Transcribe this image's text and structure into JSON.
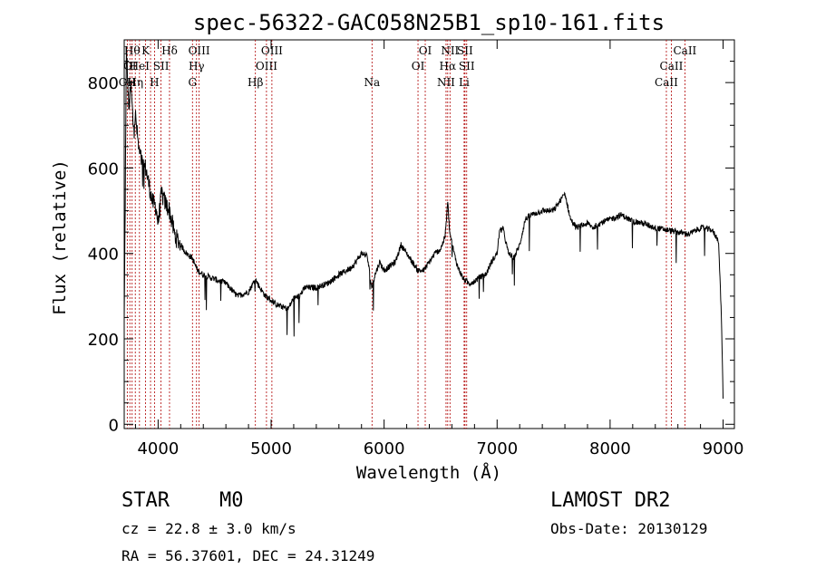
{
  "chart_data": {
    "type": "line",
    "title": "spec-56322-GAC058N25B1_sp10-161.fits",
    "xlabel": "Wavelength (Å)",
    "ylabel": "Flux (relative)",
    "xlim": [
      3700,
      9100
    ],
    "ylim": [
      -10,
      900
    ],
    "x_ticks": [
      4000,
      5000,
      6000,
      7000,
      8000,
      9000
    ],
    "y_ticks": [
      0,
      200,
      400,
      600,
      800
    ],
    "grid": false,
    "series": [
      {
        "x": [
          3700,
          3720,
          3740,
          3760,
          3780,
          3800,
          3830,
          3860,
          3890,
          3920,
          3950,
          3980,
          4000,
          4030,
          4060,
          4100,
          4150,
          4200,
          4250,
          4300,
          4350,
          4400,
          4500,
          4600,
          4700,
          4800,
          4860,
          4900,
          4950,
          5000,
          5050,
          5100,
          5150,
          5200,
          5250,
          5300,
          5400,
          5500,
          5600,
          5700,
          5750,
          5800,
          5850,
          5890,
          5920,
          5960,
          6000,
          6050,
          6100,
          6150,
          6200,
          6250,
          6300,
          6350,
          6400,
          6450,
          6500,
          6540,
          6563,
          6580,
          6620,
          6650,
          6700,
          6750,
          6800,
          6850,
          6900,
          6950,
          7000,
          7020,
          7050,
          7100,
          7150,
          7200,
          7250,
          7300,
          7400,
          7500,
          7600,
          7650,
          7700,
          7750,
          7800,
          7850,
          7900,
          8000,
          8100,
          8200,
          8300,
          8400,
          8500,
          8600,
          8700,
          8800,
          8900,
          8960,
          8985,
          9000
        ],
        "y": [
          240,
          880,
          740,
          790,
          700,
          720,
          640,
          610,
          600,
          560,
          520,
          510,
          470,
          540,
          520,
          500,
          440,
          420,
          400,
          390,
          360,
          350,
          340,
          330,
          300,
          310,
          340,
          320,
          300,
          290,
          280,
          275,
          270,
          295,
          300,
          320,
          320,
          330,
          350,
          365,
          380,
          400,
          395,
          320,
          350,
          380,
          360,
          370,
          380,
          420,
          400,
          380,
          360,
          360,
          380,
          400,
          410,
          440,
          520,
          450,
          400,
          370,
          340,
          330,
          335,
          345,
          350,
          380,
          400,
          450,
          460,
          400,
          390,
          420,
          480,
          490,
          500,
          500,
          540,
          480,
          460,
          465,
          470,
          460,
          470,
          480,
          490,
          475,
          470,
          460,
          455,
          450,
          445,
          460,
          455,
          430,
          250,
          60
        ]
      }
    ],
    "lines": [
      {
        "w": 3727,
        "label": "OII",
        "row": 2
      },
      {
        "w": 3750,
        "label": "OI",
        "row": 1
      },
      {
        "w": 3770,
        "label": "Hθ",
        "row": 0
      },
      {
        "w": 3798,
        "label": "Hη",
        "row": 2
      },
      {
        "w": 3835,
        "label": "HeI",
        "row": 1
      },
      {
        "w": 3889,
        "label": "K",
        "row": 0
      },
      {
        "w": 3933,
        "label": "",
        "row": 0
      },
      {
        "w": 3968,
        "label": "H",
        "row": 2
      },
      {
        "w": 4026,
        "label": "SII",
        "row": 1
      },
      {
        "w": 4101,
        "label": "Hδ",
        "row": 0
      },
      {
        "w": 4304,
        "label": "G",
        "row": 2
      },
      {
        "w": 4340,
        "label": "Hγ",
        "row": 1
      },
      {
        "w": 4363,
        "label": "OIII",
        "row": 0
      },
      {
        "w": 4861,
        "label": "Hβ",
        "row": 2
      },
      {
        "w": 4959,
        "label": "OIII",
        "row": 1
      },
      {
        "w": 5007,
        "label": "OIII",
        "row": 0
      },
      {
        "w": 5893,
        "label": "Na",
        "row": 2
      },
      {
        "w": 6300,
        "label": "OI",
        "row": 1
      },
      {
        "w": 6364,
        "label": "OI",
        "row": 0
      },
      {
        "w": 6548,
        "label": "NII",
        "row": 2
      },
      {
        "w": 6563,
        "label": "Hα",
        "row": 1
      },
      {
        "w": 6583,
        "label": "NII",
        "row": 0
      },
      {
        "w": 6716,
        "label": "SII",
        "row": 0
      },
      {
        "w": 6731,
        "label": "SII",
        "row": 1
      },
      {
        "w": 6708,
        "label": "Li",
        "row": 2
      },
      {
        "w": 8498,
        "label": "CaII",
        "row": 2
      },
      {
        "w": 8542,
        "label": "CaII",
        "row": 1
      },
      {
        "w": 8662,
        "label": "CaII",
        "row": 0
      }
    ]
  },
  "info": {
    "class": "STAR",
    "subclass": "M0",
    "survey": "LAMOST DR2",
    "cz": "cz = 22.8 ± 3.0 km/s",
    "obs_date": "Obs-Date: 20130129",
    "radec": "RA =  56.37601, DEC =  24.31249"
  }
}
